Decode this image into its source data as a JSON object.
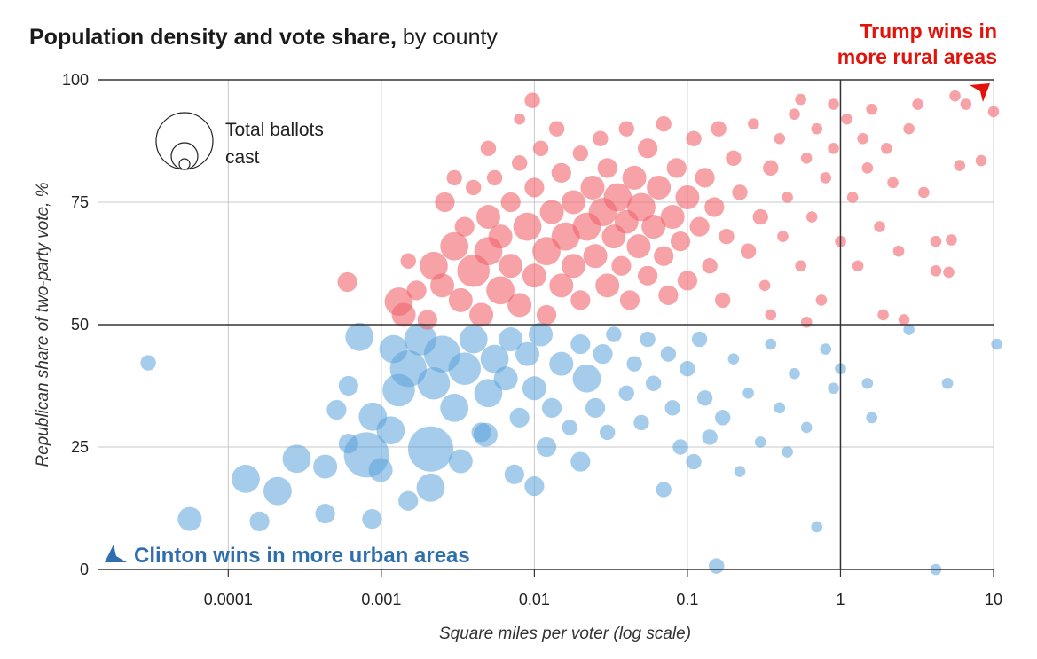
{
  "chart_data": {
    "type": "scatter",
    "title_bold": "Population density and vote share,",
    "title_rest": " by county",
    "xlabel": "Square miles per voter (log scale)",
    "ylabel": "Republican share of two-party vote, %",
    "x_scale": "log",
    "xlim": [
      1.4e-05,
      10
    ],
    "ylim": [
      0,
      100
    ],
    "x_ticks": [
      {
        "v": 0.0001,
        "label": "0.0001"
      },
      {
        "v": 0.001,
        "label": "0.001"
      },
      {
        "v": 0.01,
        "label": "0.01"
      },
      {
        "v": 0.1,
        "label": "0.1"
      },
      {
        "v": 1,
        "label": "1"
      },
      {
        "v": 10,
        "label": "10"
      }
    ],
    "y_ticks": [
      {
        "v": 0,
        "label": "0"
      },
      {
        "v": 25,
        "label": "25"
      },
      {
        "v": 50,
        "label": "50"
      },
      {
        "v": 75,
        "label": "75"
      },
      {
        "v": 100,
        "label": "100"
      }
    ],
    "grid": true,
    "legend": {
      "label_line1": "Total ballots",
      "label_line2": "cast",
      "placement": "top-left"
    },
    "annotations": {
      "trump_line1": "Trump wins in",
      "trump_line2": "more rural areas",
      "clinton": "Clinton wins in more urban areas"
    },
    "colors": {
      "republican": "#f0646c",
      "democrat": "#5ba3d9",
      "trump_text": "#e3120b",
      "clinton_text": "#2f6fae"
    },
    "point_format": [
      "square_miles_per_voter",
      "republican_share_pct",
      "relative_ballots"
    ],
    "series": [
      {
        "party": "democrat",
        "points": [
          [
            3e-05,
            42.2,
            3
          ],
          [
            5.6e-05,
            10.3,
            5
          ],
          [
            0.00013,
            18.5,
            6
          ],
          [
            0.00016,
            9.8,
            4
          ],
          [
            0.00021,
            16,
            6
          ],
          [
            0.00028,
            22.6,
            6
          ],
          [
            0.00043,
            21,
            5
          ],
          [
            0.00043,
            11.4,
            4
          ],
          [
            0.00051,
            32.6,
            4
          ],
          [
            0.00061,
            25.7,
            4
          ],
          [
            0.00061,
            37.5,
            4
          ],
          [
            0.00072,
            47.5,
            6
          ],
          [
            0.0008,
            23.4,
            10
          ],
          [
            0.00088,
            31.2,
            6
          ],
          [
            0.00087,
            10.3,
            4
          ],
          [
            0.00099,
            20.3,
            5
          ],
          [
            0.00115,
            28.4,
            6
          ],
          [
            0.0013,
            36.6,
            7
          ],
          [
            0.0012,
            45,
            6
          ],
          [
            0.0015,
            14,
            4
          ],
          [
            0.0015,
            41,
            8
          ],
          [
            0.0018,
            47,
            7
          ],
          [
            0.0021,
            24.6,
            10
          ],
          [
            0.0021,
            16.7,
            6
          ],
          [
            0.0022,
            38,
            7
          ],
          [
            0.0025,
            44,
            8
          ],
          [
            0.003,
            33,
            6
          ],
          [
            0.0033,
            22.1,
            5
          ],
          [
            0.0035,
            41,
            7
          ],
          [
            0.004,
            47,
            6
          ],
          [
            0.0045,
            28,
            4
          ],
          [
            0.0048,
            27.5,
            5
          ],
          [
            0.005,
            36,
            6
          ],
          [
            0.0055,
            43,
            6
          ],
          [
            0.0065,
            39,
            5
          ],
          [
            0.007,
            47,
            5
          ],
          [
            0.0074,
            19.4,
            4
          ],
          [
            0.008,
            31,
            4
          ],
          [
            0.009,
            44,
            5
          ],
          [
            0.01,
            17,
            4
          ],
          [
            0.01,
            37,
            5
          ],
          [
            0.011,
            48,
            5
          ],
          [
            0.012,
            25,
            4
          ],
          [
            0.013,
            33,
            4
          ],
          [
            0.015,
            42,
            5
          ],
          [
            0.017,
            29,
            3
          ],
          [
            0.02,
            22,
            4
          ],
          [
            0.02,
            46,
            4
          ],
          [
            0.022,
            39,
            6
          ],
          [
            0.025,
            33,
            4
          ],
          [
            0.028,
            44,
            4
          ],
          [
            0.03,
            28,
            3
          ],
          [
            0.033,
            48,
            3
          ],
          [
            0.04,
            36,
            3
          ],
          [
            0.045,
            42,
            3
          ],
          [
            0.05,
            30,
            3
          ],
          [
            0.055,
            47,
            3
          ],
          [
            0.06,
            38,
            3
          ],
          [
            0.07,
            16.3,
            3
          ],
          [
            0.075,
            44,
            3
          ],
          [
            0.08,
            33,
            3
          ],
          [
            0.09,
            25,
            3
          ],
          [
            0.1,
            41,
            3
          ],
          [
            0.11,
            22,
            3
          ],
          [
            0.12,
            47,
            3
          ],
          [
            0.13,
            35,
            3
          ],
          [
            0.14,
            27,
            3
          ],
          [
            0.155,
            0.7,
            3
          ],
          [
            0.17,
            31,
            3
          ],
          [
            0.2,
            43,
            2
          ],
          [
            0.22,
            20,
            2
          ],
          [
            0.25,
            36,
            2
          ],
          [
            0.3,
            26,
            2
          ],
          [
            0.35,
            46,
            2
          ],
          [
            0.4,
            33,
            2
          ],
          [
            0.45,
            24,
            2
          ],
          [
            0.5,
            40,
            2
          ],
          [
            0.6,
            29,
            2
          ],
          [
            0.7,
            8.7,
            2
          ],
          [
            0.8,
            45,
            2
          ],
          [
            0.9,
            37,
            2
          ],
          [
            1.0,
            41,
            2
          ],
          [
            1.6,
            31,
            2
          ],
          [
            1.5,
            38,
            2
          ],
          [
            2.8,
            49,
            2
          ],
          [
            4.2,
            0,
            2
          ],
          [
            5,
            38,
            2
          ],
          [
            10.5,
            46,
            2
          ]
        ]
      },
      {
        "party": "republican",
        "points": [
          [
            0.0097,
            95.8,
            3
          ],
          [
            0.0006,
            58.7,
            4
          ],
          [
            0.0013,
            54.7,
            6
          ],
          [
            0.0014,
            52,
            5
          ],
          [
            0.0017,
            57,
            4
          ],
          [
            0.002,
            51,
            4
          ],
          [
            0.0022,
            62,
            6
          ],
          [
            0.0025,
            58,
            5
          ],
          [
            0.0026,
            75,
            4
          ],
          [
            0.003,
            66,
            6
          ],
          [
            0.0033,
            55,
            5
          ],
          [
            0.0035,
            70,
            4
          ],
          [
            0.004,
            61,
            7
          ],
          [
            0.004,
            78,
            3
          ],
          [
            0.0045,
            52,
            5
          ],
          [
            0.005,
            65,
            6
          ],
          [
            0.005,
            72,
            5
          ],
          [
            0.0055,
            80,
            3
          ],
          [
            0.006,
            57,
            6
          ],
          [
            0.006,
            68,
            5
          ],
          [
            0.007,
            62,
            5
          ],
          [
            0.007,
            75,
            4
          ],
          [
            0.008,
            83,
            3
          ],
          [
            0.008,
            54,
            5
          ],
          [
            0.009,
            70,
            6
          ],
          [
            0.01,
            60,
            5
          ],
          [
            0.01,
            78,
            4
          ],
          [
            0.011,
            86,
            3
          ],
          [
            0.012,
            65,
            6
          ],
          [
            0.012,
            52,
            4
          ],
          [
            0.013,
            73,
            5
          ],
          [
            0.014,
            90,
            3
          ],
          [
            0.015,
            58,
            5
          ],
          [
            0.015,
            81,
            4
          ],
          [
            0.016,
            68,
            6
          ],
          [
            0.018,
            75,
            5
          ],
          [
            0.018,
            62,
            5
          ],
          [
            0.02,
            85,
            3
          ],
          [
            0.02,
            55,
            4
          ],
          [
            0.022,
            70,
            6
          ],
          [
            0.024,
            78,
            5
          ],
          [
            0.025,
            64,
            5
          ],
          [
            0.027,
            88,
            3
          ],
          [
            0.028,
            73,
            6
          ],
          [
            0.03,
            58,
            5
          ],
          [
            0.03,
            82,
            4
          ],
          [
            0.033,
            68,
            5
          ],
          [
            0.035,
            76,
            6
          ],
          [
            0.037,
            62,
            4
          ],
          [
            0.04,
            90,
            3
          ],
          [
            0.04,
            71,
            5
          ],
          [
            0.042,
            55,
            4
          ],
          [
            0.045,
            80,
            5
          ],
          [
            0.048,
            66,
            5
          ],
          [
            0.05,
            74,
            6
          ],
          [
            0.055,
            86,
            4
          ],
          [
            0.055,
            60,
            4
          ],
          [
            0.06,
            70,
            5
          ],
          [
            0.065,
            78,
            5
          ],
          [
            0.07,
            64,
            4
          ],
          [
            0.07,
            91,
            3
          ],
          [
            0.075,
            56,
            4
          ],
          [
            0.08,
            72,
            5
          ],
          [
            0.085,
            82,
            4
          ],
          [
            0.09,
            67,
            4
          ],
          [
            0.1,
            76,
            5
          ],
          [
            0.1,
            59,
            4
          ],
          [
            0.11,
            88,
            3
          ],
          [
            0.12,
            70,
            4
          ],
          [
            0.13,
            80,
            4
          ],
          [
            0.14,
            62,
            3
          ],
          [
            0.15,
            74,
            4
          ],
          [
            0.16,
            90,
            3
          ],
          [
            0.17,
            55,
            3
          ],
          [
            0.18,
            68,
            3
          ],
          [
            0.2,
            84,
            3
          ],
          [
            0.22,
            77,
            3
          ],
          [
            0.25,
            65,
            3
          ],
          [
            0.27,
            91,
            2
          ],
          [
            0.3,
            72,
            3
          ],
          [
            0.32,
            58,
            2
          ],
          [
            0.35,
            82,
            3
          ],
          [
            0.4,
            88,
            2
          ],
          [
            0.42,
            68,
            2
          ],
          [
            0.45,
            76,
            2
          ],
          [
            0.5,
            93,
            2
          ],
          [
            0.55,
            62,
            2
          ],
          [
            0.6,
            84,
            2
          ],
          [
            0.65,
            72,
            2
          ],
          [
            0.7,
            90,
            2
          ],
          [
            0.75,
            55,
            2
          ],
          [
            0.8,
            80,
            2
          ],
          [
            0.9,
            86,
            2
          ],
          [
            1.0,
            67,
            2
          ],
          [
            1.1,
            92,
            2
          ],
          [
            1.2,
            76,
            2
          ],
          [
            1.3,
            62,
            2
          ],
          [
            1.4,
            88,
            2
          ],
          [
            1.5,
            82,
            2
          ],
          [
            1.6,
            94,
            2
          ],
          [
            1.8,
            70,
            2
          ],
          [
            1.9,
            52,
            2
          ],
          [
            2.0,
            86,
            2
          ],
          [
            2.2,
            79,
            2
          ],
          [
            2.4,
            65,
            2
          ],
          [
            2.6,
            51,
            2
          ],
          [
            2.8,
            90,
            2
          ],
          [
            3.2,
            95,
            2
          ],
          [
            3.5,
            77,
            2
          ],
          [
            4.2,
            67,
            2
          ],
          [
            4.2,
            61,
            2
          ],
          [
            5.1,
            60.7,
            2
          ],
          [
            5.3,
            67.3,
            2
          ],
          [
            5.6,
            96.7,
            2
          ],
          [
            6.0,
            82.5,
            2
          ],
          [
            6.6,
            95,
            2
          ],
          [
            8.3,
            83.5,
            2
          ],
          [
            10,
            93.5,
            2
          ],
          [
            0.55,
            96,
            2
          ],
          [
            0.9,
            95,
            2
          ],
          [
            0.003,
            80,
            3
          ],
          [
            0.005,
            86,
            3
          ],
          [
            0.0015,
            63,
            3
          ],
          [
            0.008,
            92,
            2
          ],
          [
            0.35,
            52,
            2
          ],
          [
            0.6,
            50.5,
            2
          ]
        ]
      }
    ]
  }
}
